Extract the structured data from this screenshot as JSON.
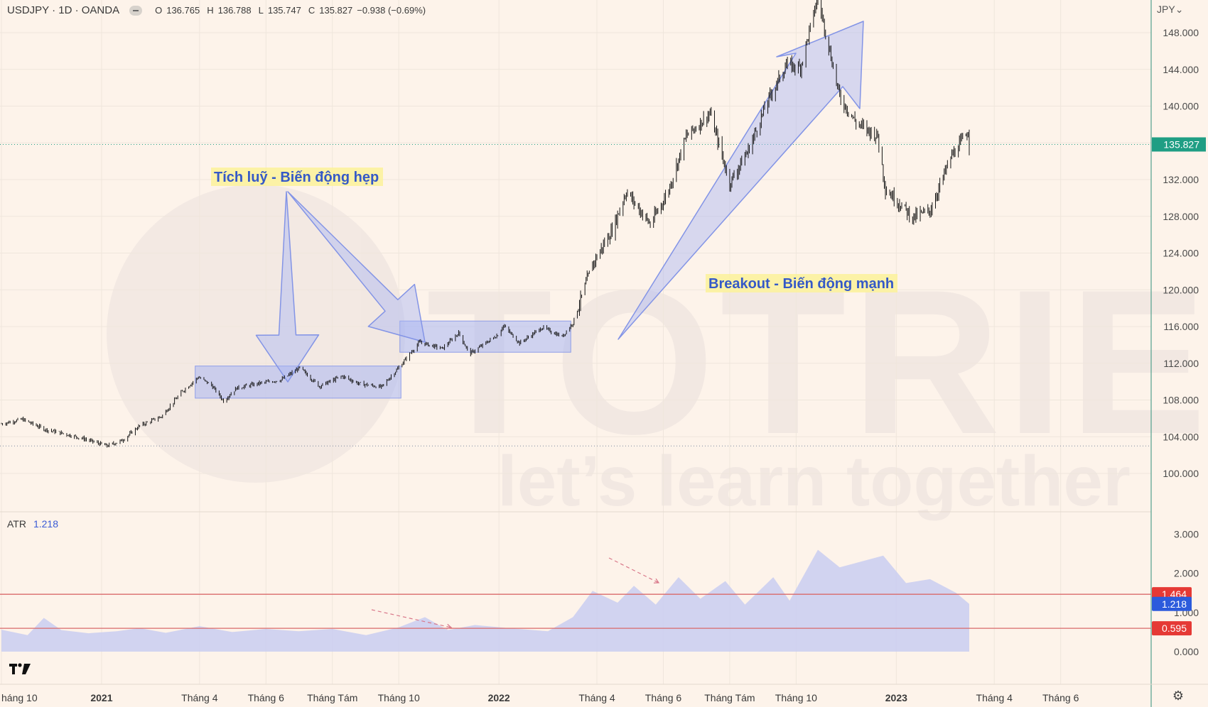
{
  "header": {
    "symbol": "USDJPY · 1D · OANDA",
    "o_label": "O",
    "o_value": "136.765",
    "h_label": "H",
    "h_value": "136.788",
    "l_label": "L",
    "l_value": "135.747",
    "c_label": "C",
    "c_value": "135.827",
    "change": "−0.938 (−0.69%)"
  },
  "currency": "JPY",
  "atr": {
    "label": "ATR",
    "value": "1.218"
  },
  "colors": {
    "background": "#fdf3ea",
    "candle": "#151515",
    "zone": "#a9b6f3",
    "atr_fill": "#c9cdf1",
    "red_line": "#d96a6a",
    "last_price_tag": "#1f9e84",
    "red_tag": "#e53935",
    "blue_tag": "#2c5bdc",
    "annotation_text": "#3559c7",
    "annotation_bg": "#fbf19a"
  },
  "chart_data": [
    {
      "type": "line",
      "name": "price",
      "last_price": 135.827,
      "ylim": [
        100,
        152
      ],
      "y_ticks": [
        "148.000",
        "144.000",
        "140.000",
        "136.000",
        "132.000",
        "128.000",
        "124.000",
        "120.000",
        "116.000",
        "112.000",
        "108.000",
        "104.000",
        "100.000"
      ],
      "x_ticks": [
        "háng 10",
        "2021",
        "Tháng 4",
        "Tháng 6",
        "Tháng Tám",
        "Tháng 10",
        "2022",
        "Tháng 4",
        "Tháng 6",
        "Tháng Tám",
        "Tháng 10",
        "2023",
        "Tháng 4",
        "Tháng 6"
      ],
      "x_ticks_bold": [
        false,
        true,
        false,
        false,
        false,
        false,
        true,
        false,
        false,
        false,
        false,
        true,
        false,
        false
      ],
      "path": [
        [
          "2020-10-01",
          105.4
        ],
        [
          "2020-10-20",
          105.9
        ],
        [
          "2020-11-10",
          104.8
        ],
        [
          "2020-11-25",
          104.4
        ],
        [
          "2020-12-15",
          103.8
        ],
        [
          "2021-01-06",
          103.0
        ],
        [
          "2021-01-20",
          103.6
        ],
        [
          "2021-02-05",
          105.2
        ],
        [
          "2021-02-25",
          106.2
        ],
        [
          "2021-03-15",
          108.8
        ],
        [
          "2021-03-31",
          110.5
        ],
        [
          "2021-04-12",
          109.6
        ],
        [
          "2021-04-23",
          107.9
        ],
        [
          "2021-05-05",
          109.3
        ],
        [
          "2021-05-25",
          109.8
        ],
        [
          "2021-06-15",
          110.2
        ],
        [
          "2021-07-02",
          111.5
        ],
        [
          "2021-07-20",
          109.5
        ],
        [
          "2021-08-10",
          110.6
        ],
        [
          "2021-08-25",
          109.8
        ],
        [
          "2021-09-15",
          109.4
        ],
        [
          "2021-09-30",
          111.4
        ],
        [
          "2021-10-20",
          114.3
        ],
        [
          "2021-11-10",
          113.6
        ],
        [
          "2021-11-25",
          115.3
        ],
        [
          "2021-12-05",
          113.0
        ],
        [
          "2021-12-31",
          115.1
        ],
        [
          "2022-01-05",
          116.1
        ],
        [
          "2022-01-20",
          114.2
        ],
        [
          "2022-02-10",
          115.9
        ],
        [
          "2022-02-28",
          114.9
        ],
        [
          "2022-03-10",
          116.4
        ],
        [
          "2022-03-28",
          122.8
        ],
        [
          "2022-04-15",
          126.5
        ],
        [
          "2022-04-28",
          130.7
        ],
        [
          "2022-05-20",
          127.1
        ],
        [
          "2022-06-05",
          130.6
        ],
        [
          "2022-06-22",
          136.7
        ],
        [
          "2022-07-14",
          139.2
        ],
        [
          "2022-08-01",
          131.6
        ],
        [
          "2022-08-18",
          135.2
        ],
        [
          "2022-09-05",
          140.6
        ],
        [
          "2022-09-22",
          144.5
        ],
        [
          "2022-10-05",
          144.2
        ],
        [
          "2022-10-21",
          151.9
        ],
        [
          "2022-11-10",
          141.0
        ],
        [
          "2022-11-25",
          138.2
        ],
        [
          "2022-12-15",
          136.7
        ],
        [
          "2022-12-22",
          131.0
        ],
        [
          "2023-01-16",
          127.9
        ],
        [
          "2023-02-01",
          128.6
        ],
        [
          "2023-02-20",
          134.4
        ],
        [
          "2023-03-08",
          137.2
        ],
        [
          "2023-03-09",
          135.8
        ]
      ],
      "annotations": [
        {
          "text": "Tích luỹ - Biến động hẹp"
        },
        {
          "text": "Breakout - Biến động mạnh"
        }
      ],
      "zones": [
        {
          "x_start": "2021-03-28",
          "x_end": "2021-10-03",
          "y_low": 108.2,
          "y_high": 111.7
        },
        {
          "x_start": "2021-10-02",
          "x_end": "2022-03-08",
          "y_low": 113.2,
          "y_high": 116.6
        }
      ],
      "grid": false
    },
    {
      "type": "area",
      "name": "ATR",
      "ylim": [
        0,
        3.1
      ],
      "y_ticks": [
        "3.000",
        "2.000",
        "1.000",
        "0.000"
      ],
      "levels": [
        "1.464",
        "0.595"
      ],
      "current": "1.218",
      "path": [
        [
          "2020-10-01",
          0.56
        ],
        [
          "2020-10-25",
          0.42
        ],
        [
          "2020-11-09",
          0.86
        ],
        [
          "2020-11-25",
          0.55
        ],
        [
          "2020-12-20",
          0.47
        ],
        [
          "2021-01-15",
          0.52
        ],
        [
          "2021-02-05",
          0.6
        ],
        [
          "2021-03-01",
          0.48
        ],
        [
          "2021-04-01",
          0.65
        ],
        [
          "2021-05-01",
          0.5
        ],
        [
          "2021-06-01",
          0.58
        ],
        [
          "2021-07-01",
          0.52
        ],
        [
          "2021-08-01",
          0.58
        ],
        [
          "2021-09-01",
          0.42
        ],
        [
          "2021-10-01",
          0.62
        ],
        [
          "2021-10-25",
          0.88
        ],
        [
          "2021-11-15",
          0.55
        ],
        [
          "2021-12-10",
          0.68
        ],
        [
          "2022-01-10",
          0.6
        ],
        [
          "2022-02-15",
          0.52
        ],
        [
          "2022-03-10",
          0.88
        ],
        [
          "2022-03-28",
          1.55
        ],
        [
          "2022-04-20",
          1.25
        ],
        [
          "2022-05-05",
          1.68
        ],
        [
          "2022-05-25",
          1.2
        ],
        [
          "2022-06-15",
          1.9
        ],
        [
          "2022-07-05",
          1.35
        ],
        [
          "2022-07-28",
          1.8
        ],
        [
          "2022-08-15",
          1.2
        ],
        [
          "2022-09-10",
          1.9
        ],
        [
          "2022-09-25",
          1.3
        ],
        [
          "2022-10-21",
          2.6
        ],
        [
          "2022-11-10",
          2.15
        ],
        [
          "2022-12-20",
          2.45
        ],
        [
          "2023-01-10",
          1.75
        ],
        [
          "2023-02-01",
          1.85
        ],
        [
          "2023-02-25",
          1.5
        ],
        [
          "2023-03-09",
          1.22
        ]
      ]
    }
  ]
}
